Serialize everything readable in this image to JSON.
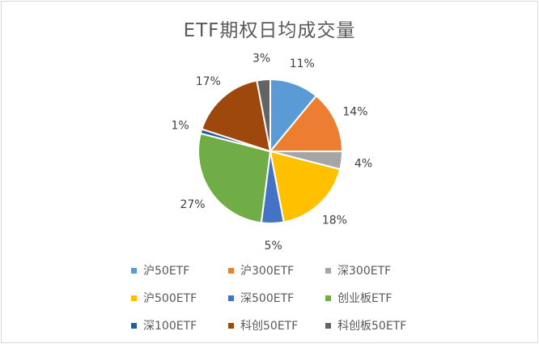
{
  "chart_data": {
    "type": "pie",
    "title": "ETF期权日均成交量",
    "labels": [
      "沪50ETF",
      "沪300ETF",
      "深300ETF",
      "沪500ETF",
      "深500ETF",
      "创业板ETF",
      "深100ETF",
      "科创50ETF",
      "科创板50ETF"
    ],
    "values": [
      11,
      14,
      4,
      18,
      5,
      27,
      1,
      17,
      3
    ],
    "value_labels": [
      "11%",
      "14%",
      "4%",
      "18%",
      "5%",
      "27%",
      "1%",
      "17%",
      "3%"
    ],
    "colors": [
      "#5b9bd5",
      "#ed7d31",
      "#a5a5a5",
      "#ffc000",
      "#4472c4",
      "#70ad47",
      "#255e91",
      "#9e480e",
      "#636363"
    ],
    "legend_position": "bottom"
  }
}
